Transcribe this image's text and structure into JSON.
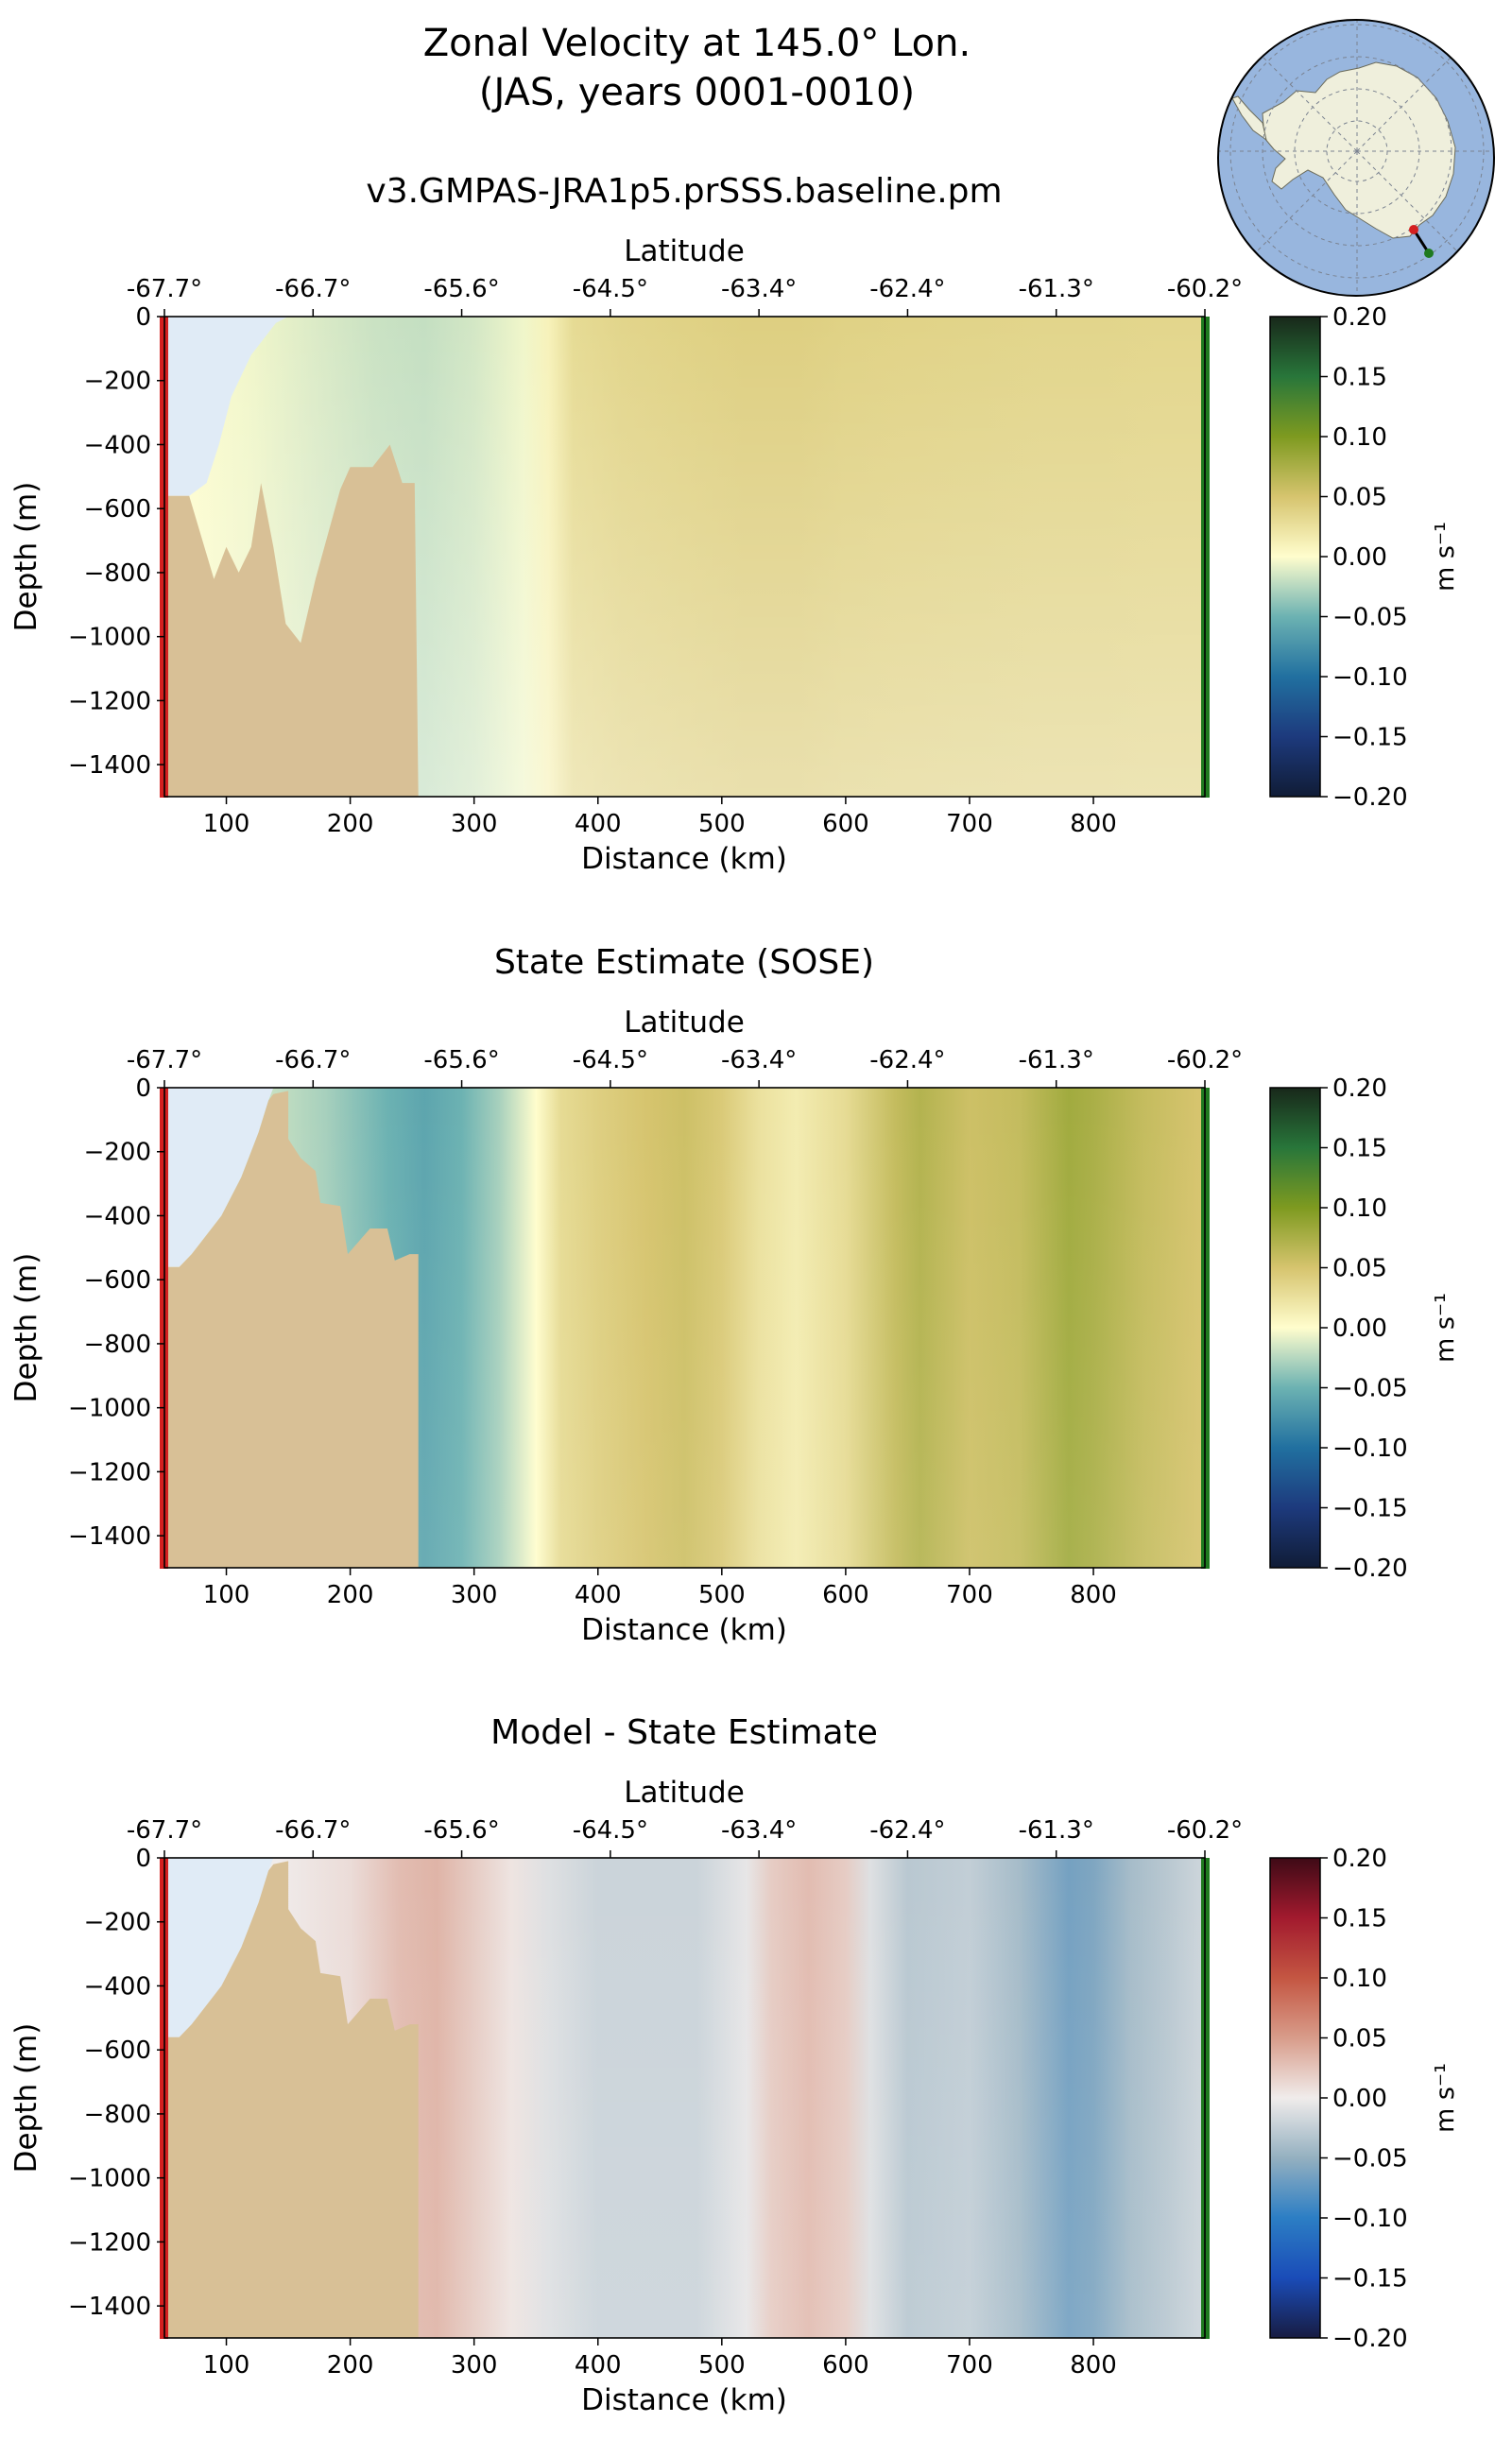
{
  "figure": {
    "title_line1": "Zonal Velocity at 145.0° Lon.",
    "title_line2": "(JAS, years 0001-0010)"
  },
  "colors": {
    "land": "#d8c096",
    "ice_shelf": "#e0ebf6",
    "transect_start": "#d42020",
    "transect_end": "#1f7a1f",
    "ocean_map": "#98b6de",
    "continent_map": "#efefdc"
  },
  "chart_data": [
    {
      "type": "heatmap",
      "title": "v3.GMPAS-JRA1p5.prSSS.baseline.pm",
      "xlabel": "Distance (km)",
      "ylabel": "Depth (m)",
      "top_axis_label": "Latitude",
      "xlim": [
        50,
        890
      ],
      "ylim": [
        -1500,
        0
      ],
      "xticks": [
        100,
        200,
        300,
        400,
        500,
        600,
        700,
        800
      ],
      "yticks": [
        0,
        -200,
        -400,
        -600,
        -800,
        -1000,
        -1200,
        -1400
      ],
      "latitude_ticks": [
        "-67.7°",
        "-66.7°",
        "-65.6°",
        "-64.5°",
        "-63.4°",
        "-62.4°",
        "-61.3°",
        "-60.2°"
      ],
      "colormap": "delta",
      "colorbar": {
        "label": "m s⁻¹",
        "range": [
          -0.2,
          0.2
        ],
        "ticks": [
          0.2,
          0.15,
          0.1,
          0.05,
          0.0,
          -0.05,
          -0.1,
          -0.15,
          -0.2
        ]
      },
      "velocity_profile": {
        "distance_km": [
          60,
          120,
          170,
          220,
          260,
          300,
          340,
          360,
          380,
          420,
          470,
          520,
          560,
          600,
          650,
          700,
          760,
          800,
          850,
          885
        ],
        "u_ms": [
          0.0,
          -0.005,
          -0.012,
          -0.018,
          -0.02,
          -0.015,
          -0.005,
          0.01,
          0.03,
          0.035,
          0.038,
          0.04,
          0.04,
          0.038,
          0.037,
          0.036,
          0.035,
          0.035,
          0.034,
          0.034
        ]
      }
    },
    {
      "type": "heatmap",
      "title": "State Estimate (SOSE)",
      "xlabel": "Distance (km)",
      "ylabel": "Depth (m)",
      "top_axis_label": "Latitude",
      "xlim": [
        50,
        890
      ],
      "ylim": [
        -1500,
        0
      ],
      "xticks": [
        100,
        200,
        300,
        400,
        500,
        600,
        700,
        800
      ],
      "yticks": [
        0,
        -200,
        -400,
        -600,
        -800,
        -1000,
        -1200,
        -1400
      ],
      "latitude_ticks": [
        "-67.7°",
        "-66.7°",
        "-65.6°",
        "-64.5°",
        "-63.4°",
        "-62.4°",
        "-61.3°",
        "-60.2°"
      ],
      "colormap": "delta",
      "colorbar": {
        "label": "m s⁻¹",
        "range": [
          -0.2,
          0.2
        ],
        "ticks": [
          0.2,
          0.15,
          0.1,
          0.05,
          0.0,
          -0.05,
          -0.1,
          -0.15,
          -0.2
        ]
      },
      "velocity_profile": {
        "distance_km": [
          60,
          140,
          180,
          230,
          260,
          290,
          320,
          350,
          370,
          400,
          440,
          470,
          500,
          530,
          560,
          600,
          640,
          660,
          700,
          740,
          780,
          800,
          840,
          885
        ],
        "u_ms": [
          0.0,
          -0.02,
          -0.03,
          -0.05,
          -0.06,
          -0.05,
          -0.03,
          0.0,
          0.03,
          0.04,
          0.05,
          0.055,
          0.045,
          0.025,
          0.015,
          0.03,
          0.06,
          0.07,
          0.055,
          0.06,
          0.08,
          0.075,
          0.06,
          0.05
        ]
      }
    },
    {
      "type": "heatmap",
      "title": "Model - State Estimate",
      "xlabel": "Distance (km)",
      "ylabel": "Depth (m)",
      "top_axis_label": "Latitude",
      "xlim": [
        50,
        890
      ],
      "ylim": [
        -1500,
        0
      ],
      "xticks": [
        100,
        200,
        300,
        400,
        500,
        600,
        700,
        800
      ],
      "yticks": [
        0,
        -200,
        -400,
        -600,
        -800,
        -1000,
        -1200,
        -1400
      ],
      "latitude_ticks": [
        "-67.7°",
        "-66.7°",
        "-65.6°",
        "-64.5°",
        "-63.4°",
        "-62.4°",
        "-61.3°",
        "-60.2°"
      ],
      "colormap": "balance",
      "colorbar": {
        "label": "m s⁻¹",
        "range": [
          -0.2,
          0.2
        ],
        "ticks": [
          0.2,
          0.15,
          0.1,
          0.05,
          0.0,
          -0.05,
          -0.1,
          -0.15,
          -0.2
        ]
      },
      "velocity_profile": {
        "distance_km": [
          60,
          140,
          200,
          240,
          270,
          300,
          330,
          360,
          400,
          440,
          480,
          520,
          540,
          570,
          600,
          620,
          650,
          700,
          740,
          780,
          800,
          830,
          860,
          885
        ],
        "u_ms": [
          0.0,
          0.0,
          0.01,
          0.03,
          0.035,
          0.02,
          0.005,
          -0.01,
          -0.02,
          -0.02,
          -0.02,
          -0.005,
          0.02,
          0.03,
          0.02,
          -0.01,
          -0.03,
          -0.025,
          -0.04,
          -0.065,
          -0.06,
          -0.04,
          -0.03,
          -0.02
        ]
      }
    }
  ]
}
